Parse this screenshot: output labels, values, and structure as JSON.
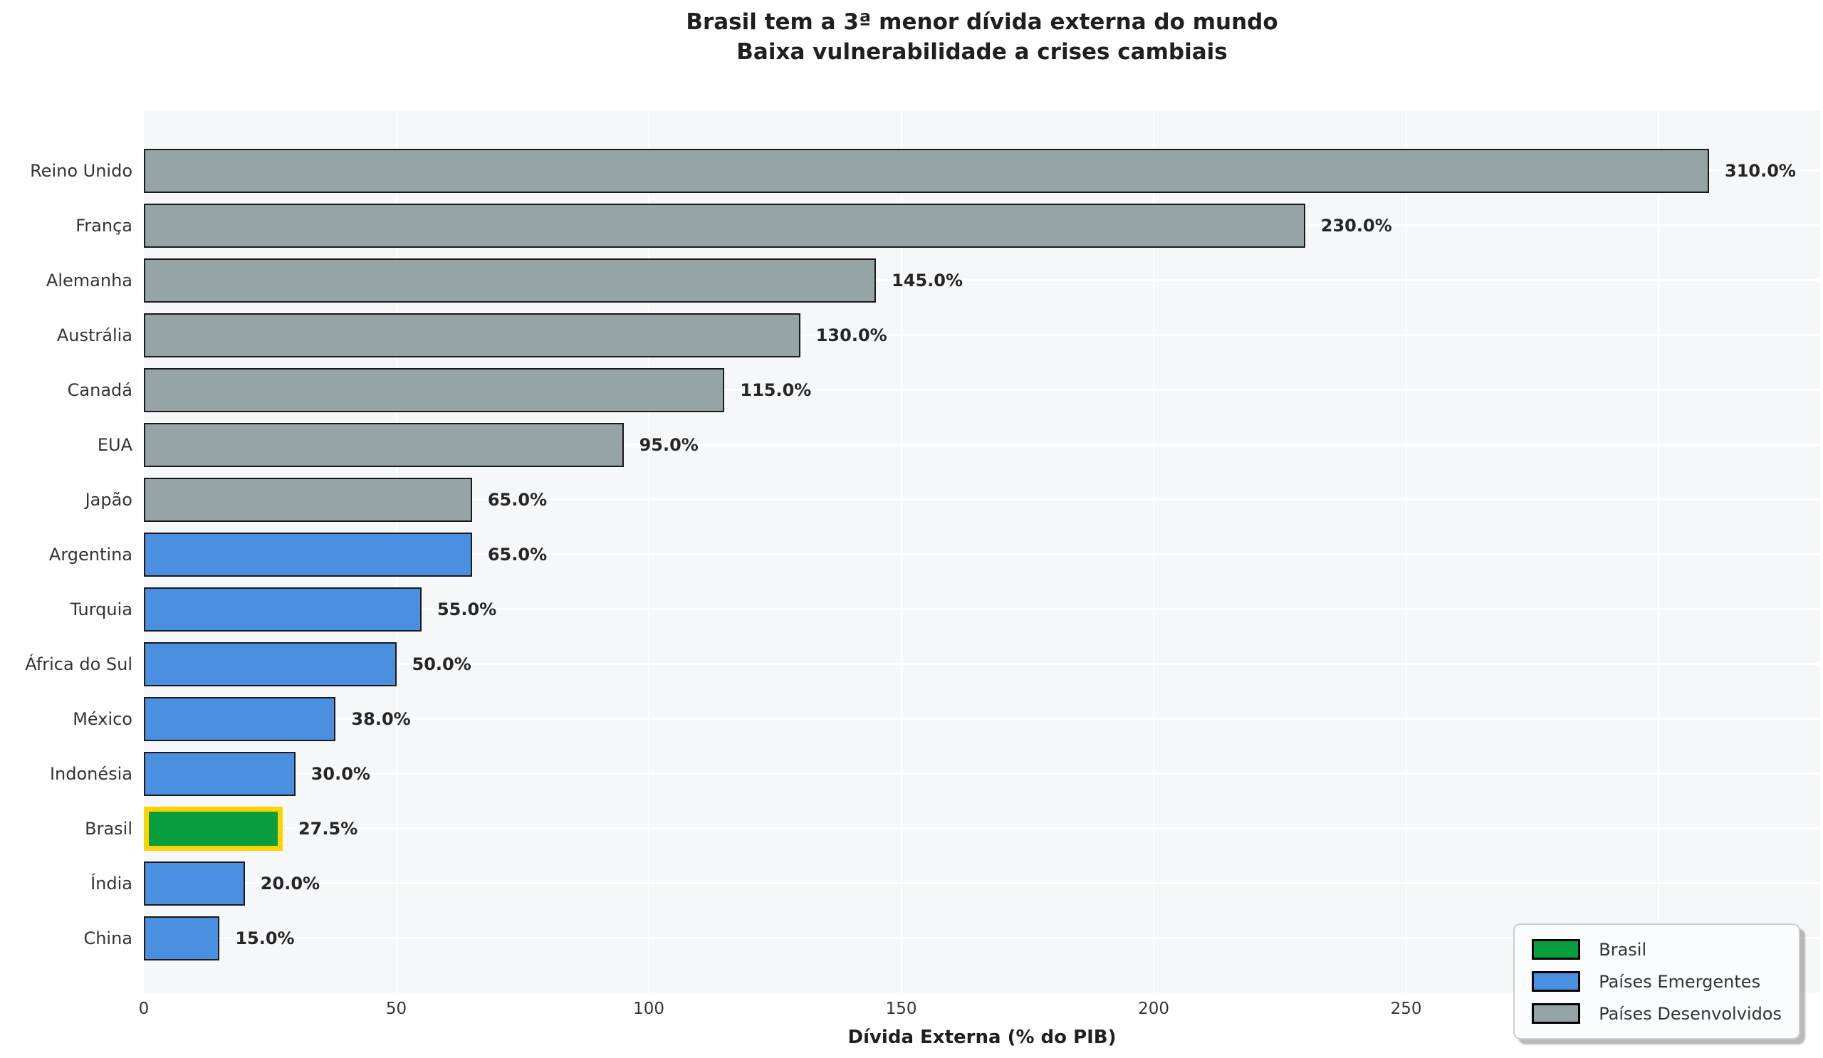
{
  "title": {
    "line1": "Brasil tem a 3ª menor dívida externa do mundo",
    "line2": "Baixa vulnerabilidade a crises cambiais"
  },
  "chart_data": {
    "type": "bar",
    "orientation": "horizontal",
    "categories": [
      "Reino Unido",
      "França",
      "Alemanha",
      "Austrália",
      "Canadá",
      "EUA",
      "Japão",
      "Argentina",
      "Turquia",
      "África do Sul",
      "México",
      "Indonésia",
      "Brasil",
      "Índia",
      "China"
    ],
    "values": [
      310.0,
      230.0,
      145.0,
      130.0,
      115.0,
      95.0,
      65.0,
      65.0,
      55.0,
      50.0,
      38.0,
      30.0,
      27.5,
      20.0,
      15.0
    ],
    "value_labels": [
      "310.0%",
      "230.0%",
      "145.0%",
      "130.0%",
      "115.0%",
      "95.0%",
      "65.0%",
      "65.0%",
      "55.0%",
      "50.0%",
      "38.0%",
      "30.0%",
      "27.5%",
      "20.0%",
      "15.0%"
    ],
    "groups": [
      "desenvolvidos",
      "desenvolvidos",
      "desenvolvidos",
      "desenvolvidos",
      "desenvolvidos",
      "desenvolvidos",
      "desenvolvidos",
      "emergentes",
      "emergentes",
      "emergentes",
      "emergentes",
      "emergentes",
      "brasil",
      "emergentes",
      "emergentes"
    ],
    "xlabel": "Dívida Externa (% do PIB)",
    "xticks": [
      0,
      50,
      100,
      150,
      200,
      250,
      300
    ],
    "xlim": [
      0,
      332
    ],
    "grid": true,
    "colors": {
      "brasil": "#089e3d",
      "emergentes": "#4a8fe0",
      "desenvolvidos": "#95a5a6",
      "brasil_border": "#ffd200",
      "bar_border": "#1a1a1a",
      "plot_background": "#f6f7f9"
    },
    "legend": {
      "position": "lower right",
      "entries": [
        {
          "label": "Brasil",
          "color_key": "brasil"
        },
        {
          "label": "Países Emergentes",
          "color_key": "emergentes"
        },
        {
          "label": "Países Desenvolvidos",
          "color_key": "desenvolvidos"
        }
      ]
    }
  }
}
